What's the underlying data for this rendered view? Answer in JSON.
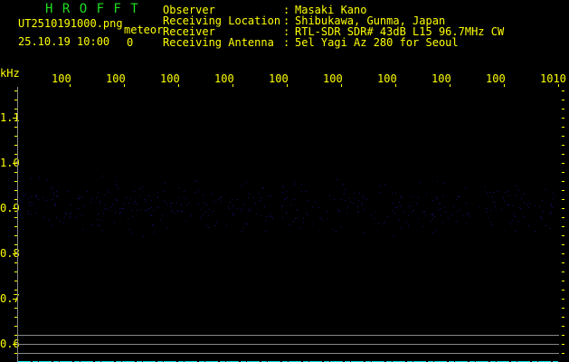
{
  "app_title": "H R O F F T",
  "file": {
    "name": "UT2510191000.png",
    "mode": "meteor",
    "datetime": "25.10.19 10:00",
    "count": "0"
  },
  "info": [
    {
      "label": "Observer",
      "value": "Masaki Kano"
    },
    {
      "label": "Receiving Location",
      "value": "Shibukawa, Gunma, Japan"
    },
    {
      "label": "Receiver",
      "value": "RTL-SDR SDR# 43dB L15 96.7MHz CW"
    },
    {
      "label": "Receiving Antenna",
      "value": "5el Yagi Az 280 for Seoul"
    }
  ],
  "axis": {
    "unit": "kHz",
    "x_ticks": [
      "1001",
      "1002",
      "1003",
      "1004",
      "1005",
      "1006",
      "1007",
      "1008",
      "1009",
      "1010"
    ],
    "y_ticks": [
      "1.1",
      "1.0",
      "0.9",
      "0.8",
      "0.7",
      "0.6"
    ]
  },
  "colors": {
    "text": "#ffff00",
    "title": "#22dd22",
    "noise": "#10106a",
    "lines": "#888888",
    "bottom_strip": "#00e0e0"
  }
}
